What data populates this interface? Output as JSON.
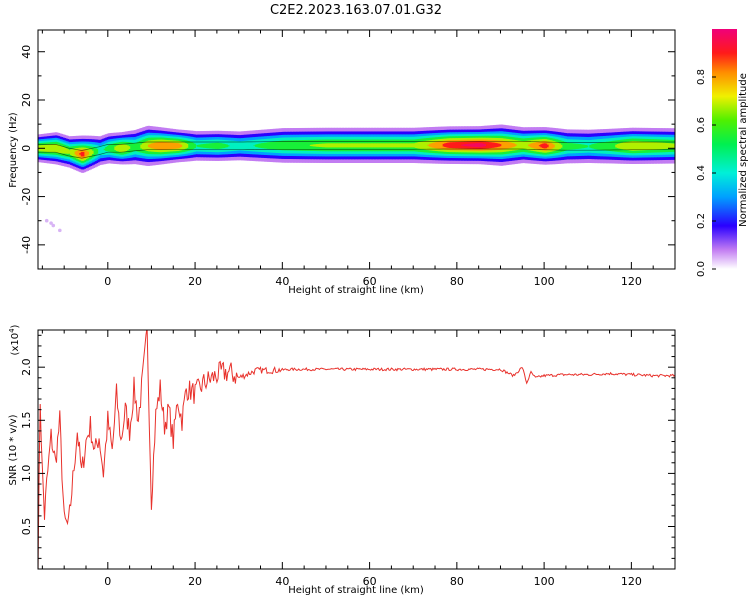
{
  "title": "C2E2.2023.163.07.01.G32",
  "colors": {
    "snr_line": "#e8322c",
    "frame": "#000000"
  },
  "chart_data": [
    {
      "type": "heatmap",
      "xlabel": "Height of straight line (km)",
      "ylabel": "Frequency (Hz)",
      "xlim": [
        -16,
        130
      ],
      "ylim": [
        -50,
        49
      ],
      "xticks": [
        0,
        20,
        40,
        60,
        80,
        100,
        120
      ],
      "yticks": [
        -40,
        -20,
        0,
        20,
        40
      ],
      "colorbar": {
        "label": "Normalized spectral amplitude",
        "range": [
          0.0,
          1.0
        ],
        "ticks": [
          "0.0",
          "0.2",
          "0.4",
          "0.6",
          "0.8"
        ]
      },
      "ridge": {
        "x": [
          -16,
          -12,
          -9,
          -6,
          -2,
          0,
          3,
          6,
          9,
          12,
          16,
          20,
          25,
          30,
          40,
          50,
          60,
          70,
          78,
          85,
          90,
          95,
          100,
          105,
          110,
          115,
          120,
          125,
          130
        ],
        "freq": [
          0,
          0,
          -1.5,
          -2.5,
          -1,
          0,
          0,
          0.5,
          1,
          1,
          1,
          1,
          1,
          1,
          1.2,
          1.2,
          1.2,
          1.2,
          1.3,
          1.3,
          1.3,
          1.3,
          1,
          0.8,
          0.8,
          0.9,
          1,
          1,
          1
        ],
        "intensity": [
          0.75,
          0.8,
          0.7,
          0.95,
          0.5,
          0.6,
          0.8,
          0.6,
          0.8,
          0.9,
          0.85,
          0.55,
          0.6,
          0.5,
          0.65,
          0.7,
          0.7,
          0.7,
          0.95,
          1.0,
          0.9,
          0.75,
          0.95,
          0.6,
          0.55,
          0.65,
          0.8,
          0.75,
          0.7
        ],
        "width": [
          3.5,
          4,
          4,
          4.5,
          4,
          4,
          4,
          4.5,
          5,
          4.5,
          4,
          4,
          4,
          4,
          4.5,
          4.5,
          4.5,
          4.5,
          4.5,
          4.5,
          5,
          4.5,
          4.5,
          4.5,
          4.5,
          4.5,
          4.5,
          4.5,
          4.5
        ]
      }
    },
    {
      "type": "line",
      "xlabel": "Height of straight line (km)",
      "ylabel": "SNR (10 * v/v)",
      "yscale_label": "(x10^4)",
      "xlim": [
        -16,
        130
      ],
      "ylim": [
        0.1,
        2.35
      ],
      "xticks": [
        0,
        20,
        40,
        60,
        80,
        100,
        120
      ],
      "yticks": [
        0.5,
        1.0,
        1.5,
        2.0
      ],
      "series": [
        {
          "x": [
            -16,
            -15.5,
            -15,
            -14.5,
            -14,
            -13,
            -12,
            -11,
            -10,
            -9,
            -8,
            -7,
            -6,
            -5,
            -4,
            -3,
            -2,
            -1,
            0,
            1,
            2,
            3,
            4,
            5,
            6,
            7,
            8,
            9,
            9.5,
            10,
            11,
            12,
            13,
            14,
            15,
            16,
            17,
            18,
            20,
            22,
            24,
            26,
            28,
            30,
            34,
            38,
            42,
            50,
            60,
            70,
            80,
            90,
            93,
            95,
            96,
            97,
            98,
            100,
            105,
            110,
            115,
            120,
            125,
            130
          ],
          "y": [
            0.15,
            1.7,
            1.0,
            0.6,
            0.9,
            1.35,
            1.1,
            1.5,
            0.55,
            0.5,
            0.95,
            1.4,
            1.0,
            1.3,
            1.45,
            1.2,
            1.35,
            1.0,
            1.5,
            1.2,
            1.75,
            1.3,
            1.6,
            1.4,
            1.8,
            1.5,
            1.9,
            2.32,
            1.55,
            0.75,
            1.55,
            1.8,
            1.45,
            1.6,
            1.3,
            1.7,
            1.5,
            1.8,
            1.75,
            1.85,
            1.9,
            1.95,
            1.95,
            1.9,
            1.97,
            1.97,
            1.98,
            1.98,
            1.98,
            1.98,
            1.98,
            1.98,
            1.92,
            2.0,
            1.85,
            1.95,
            1.9,
            1.92,
            1.93,
            1.93,
            1.94,
            1.93,
            1.92,
            1.92
          ]
        }
      ]
    }
  ]
}
